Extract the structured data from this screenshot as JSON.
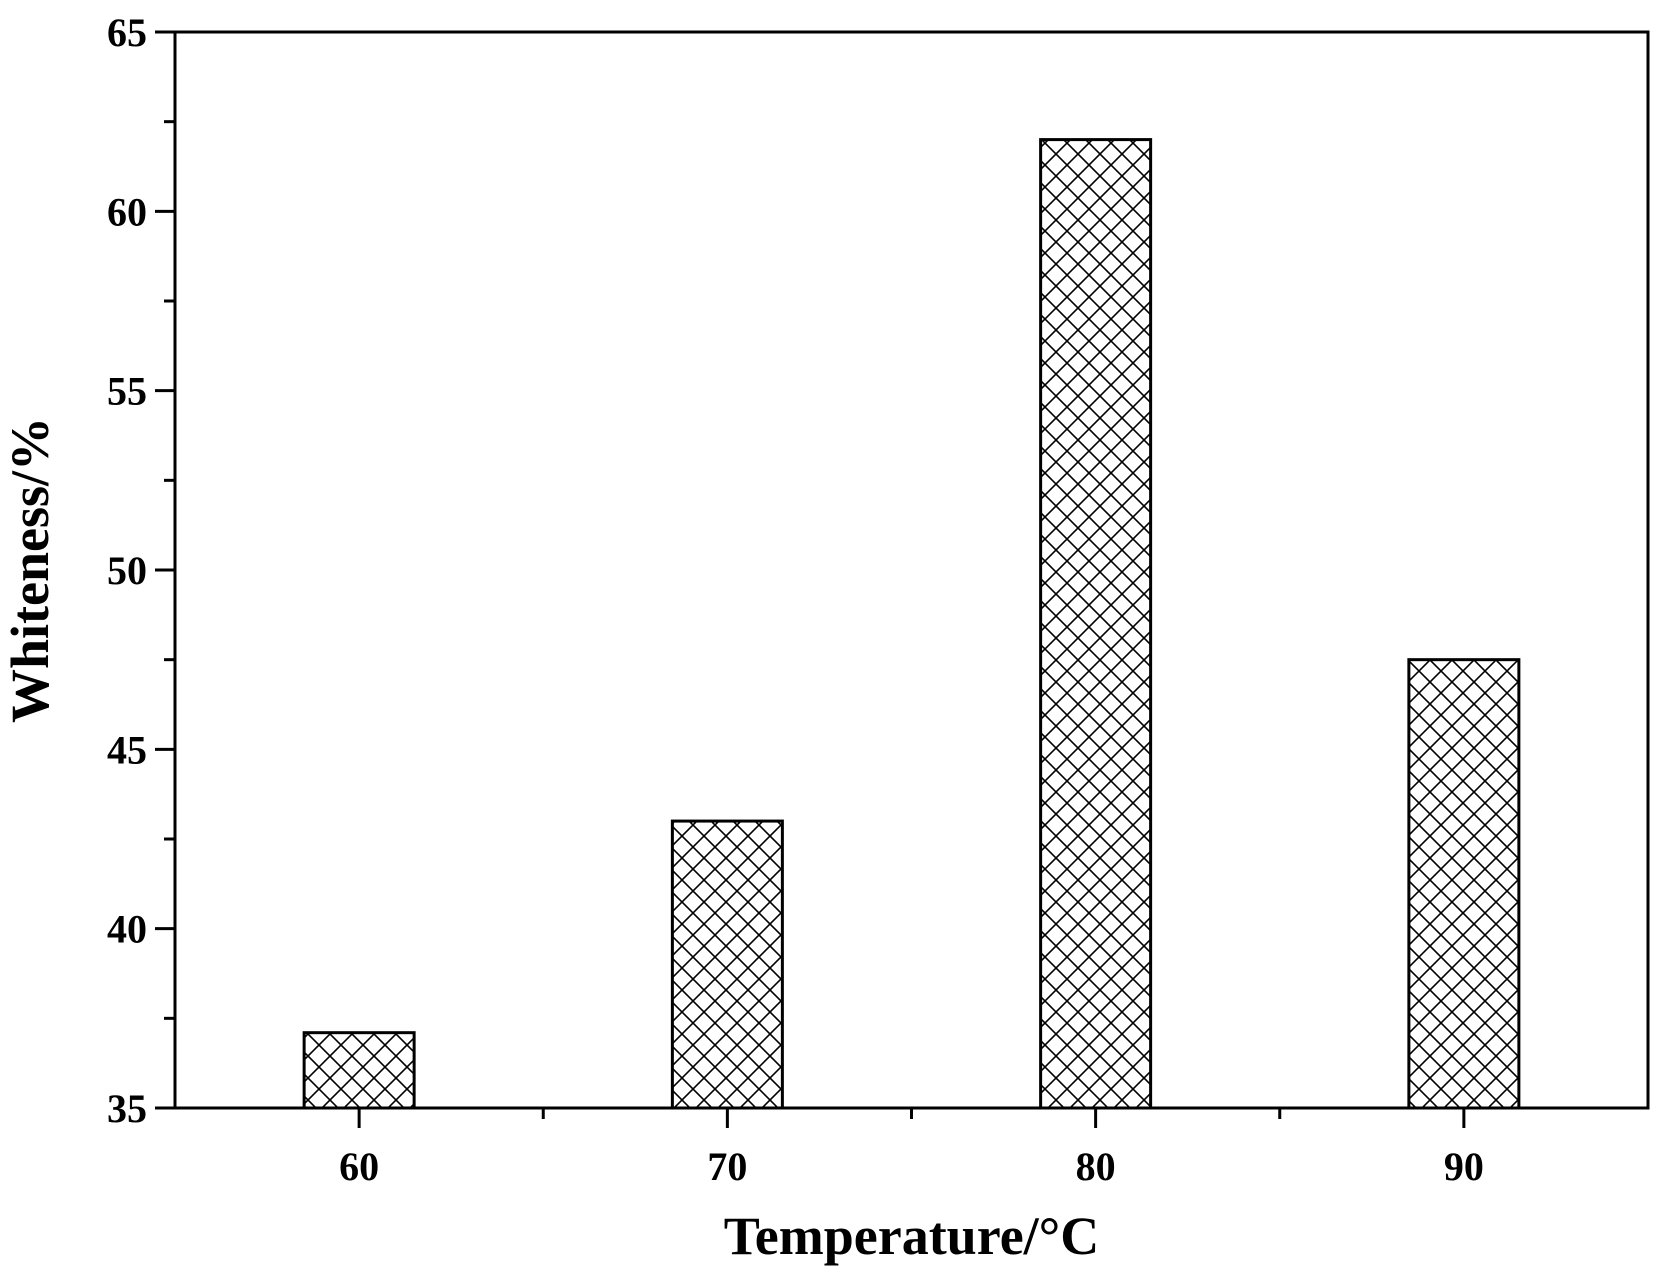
{
  "chart_data": {
    "type": "bar",
    "categories": [
      "60",
      "70",
      "80",
      "90"
    ],
    "values": [
      37.1,
      43.0,
      62.0,
      47.5
    ],
    "title": "",
    "xlabel": "Temperature/°C",
    "ylabel": "Whiteness/%",
    "ylim": [
      35,
      65
    ],
    "yticks": [
      "35",
      "40",
      "45",
      "50",
      "55",
      "60",
      "65"
    ],
    "grid": false,
    "bar_pattern": "crosshatch",
    "colors": {
      "bar_fill": "#ffffff",
      "hatch": "#000000",
      "axis": "#000000"
    }
  }
}
